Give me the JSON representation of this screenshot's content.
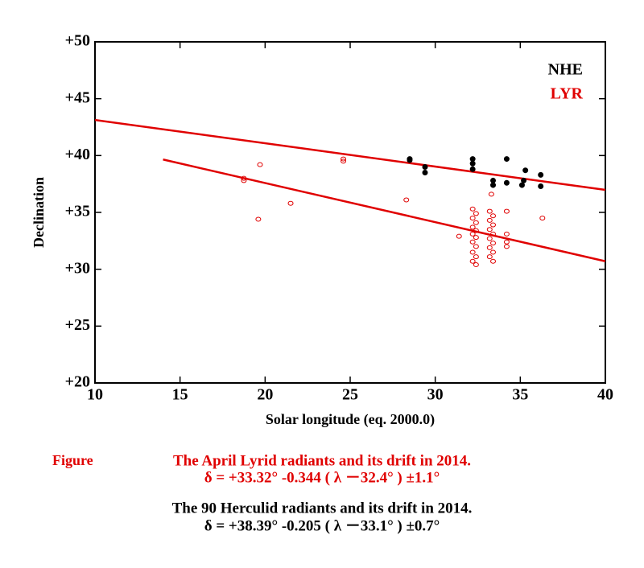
{
  "chart_data": {
    "type": "scatter",
    "xlabel": "Solar longitude (eq. 2000.0)",
    "ylabel": "Declination",
    "xlim": [
      10,
      40
    ],
    "ylim": [
      20,
      50
    ],
    "xticks": [
      10,
      15,
      20,
      25,
      30,
      35,
      40
    ],
    "yticks": [
      {
        "value": 20,
        "label": "+20"
      },
      {
        "value": 25,
        "label": "+25"
      },
      {
        "value": 30,
        "label": "+30"
      },
      {
        "value": 35,
        "label": "+35"
      },
      {
        "value": 40,
        "label": "+40"
      },
      {
        "value": 45,
        "label": "+45"
      },
      {
        "value": 50,
        "label": "+50"
      }
    ],
    "legend": "upper right",
    "series": [
      {
        "name": "NHE",
        "color": "#000000",
        "marker": "filled",
        "x": [
          28.5,
          28.5,
          29.4,
          29.4,
          32.2,
          32.2,
          32.2,
          33.4,
          33.4,
          34.2,
          34.2,
          35.1,
          35.2,
          35.3,
          36.2,
          36.2
        ],
        "values": [
          39.7,
          39.6,
          39.0,
          38.5,
          39.7,
          39.3,
          38.8,
          37.8,
          37.4,
          39.7,
          37.6,
          37.4,
          37.8,
          38.7,
          38.3,
          37.3
        ]
      },
      {
        "name": "LYR",
        "color": "#e00000",
        "marker": "open",
        "x": [
          18.75,
          18.75,
          19.6,
          19.7,
          21.5,
          24.6,
          24.6,
          28.3,
          31.4,
          32.2,
          32.4,
          32.2,
          32.4,
          32.2,
          32.4,
          32.2,
          32.4,
          32.2,
          32.4,
          32.2,
          32.4,
          32.2,
          32.4,
          33.3,
          33.2,
          33.4,
          33.2,
          33.4,
          33.2,
          33.4,
          33.2,
          33.4,
          33.2,
          33.4,
          33.2,
          33.4,
          34.2,
          34.2,
          34.2,
          34.2,
          36.3
        ],
        "values": [
          38.0,
          37.8,
          34.4,
          39.2,
          35.8,
          39.7,
          39.5,
          36.1,
          32.9,
          35.3,
          34.9,
          34.5,
          34.1,
          33.7,
          33.4,
          33.1,
          32.8,
          32.4,
          32.0,
          31.5,
          31.1,
          30.7,
          30.4,
          36.6,
          35.1,
          34.7,
          34.3,
          33.9,
          33.5,
          33.1,
          32.7,
          32.3,
          31.9,
          31.5,
          31.1,
          30.7,
          35.1,
          33.1,
          32.4,
          32.0,
          34.5
        ]
      }
    ],
    "fit_lines": [
      {
        "color": "#e00000",
        "x": [
          10,
          40
        ],
        "y": [
          43.13,
          36.98
        ]
      },
      {
        "color": "#e00000",
        "x": [
          14,
          40
        ],
        "y": [
          39.65,
          30.7
        ]
      }
    ],
    "figure_label": {
      "text": "Figure",
      "color": "#e00000"
    },
    "annotations": [
      {
        "text": "The April Lyrid radiants and its drift in 2014.",
        "color": "#e00000"
      },
      {
        "text": "δ = +33.32°  -0.344 ( λ －32.4° )  ±1.1°",
        "color": "#e00000"
      },
      {
        "text": "The 90 Herculid radiants and its drift in 2014.",
        "color": "#000000"
      },
      {
        "text": "δ = +38.39°  -0.205 ( λ －33.1° )  ±0.7°",
        "color": "#000000"
      }
    ]
  }
}
